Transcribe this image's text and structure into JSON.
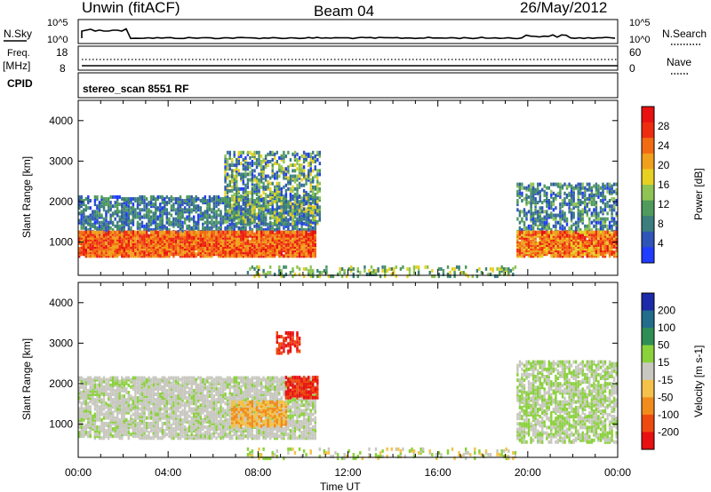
{
  "header": {
    "left_title": "Unwin (fitACF)",
    "center_title": "Beam 04",
    "right_title": "26/May/2012"
  },
  "strips": {
    "nsky_label": "N.Sky",
    "nsky_ticks": [
      "10^5",
      "10^0"
    ],
    "nsearch_label": "N.Search",
    "nsearch_ticks": [
      "10^5",
      "10^0"
    ],
    "freq_label": "Freq.",
    "freq_unit": "[MHz]",
    "freq_ticks": [
      "18",
      "8"
    ],
    "nave_label": "Nave",
    "nave_ticks": [
      "60",
      "0"
    ],
    "cpid_label": "CPID",
    "cpid_text": "stereo_scan 8551 RF"
  },
  "chart_data": [
    {
      "type": "heatmap",
      "panel": "power",
      "ylabel": "Slant Range [km]",
      "ylim": [
        180,
        4500
      ],
      "yticks": [
        1000,
        2000,
        3000,
        4000
      ],
      "xlim_hours": [
        0,
        24
      ],
      "colorbar": {
        "label": "Power [dB]",
        "ticks": [
          "4",
          "8",
          "12",
          "16",
          "20",
          "24",
          "28"
        ],
        "colors": [
          "#1f3cff",
          "#2f55b8",
          "#3c7d7d",
          "#4f9a5c",
          "#8fc455",
          "#e6d022",
          "#f0a01c",
          "#f26a12",
          "#ee2c10",
          "#e81010"
        ]
      },
      "echo_regions": [
        {
          "name": "dense F-region band",
          "hours": [
            0,
            10.5
          ],
          "range_km": [
            700,
            1300
          ],
          "power_db": [
            20,
            30
          ]
        },
        {
          "name": "sparse upper echoes",
          "hours": [
            0,
            10.5
          ],
          "range_km": [
            1300,
            2200
          ],
          "power_db": [
            4,
            14
          ]
        },
        {
          "name": "rising patch",
          "hours": [
            6.5,
            10.7
          ],
          "range_km": [
            1500,
            3300
          ],
          "power_db": [
            4,
            20
          ]
        },
        {
          "name": "near-range ground echoes",
          "hours": [
            7.5,
            19.5
          ],
          "range_km": [
            200,
            450
          ],
          "power_db": [
            8,
            20
          ]
        },
        {
          "name": "dusk band",
          "hours": [
            19.5,
            24
          ],
          "range_km": [
            700,
            2500
          ],
          "power_db": [
            4,
            30
          ]
        }
      ]
    },
    {
      "type": "heatmap",
      "panel": "velocity",
      "ylabel": "Slant Range [km]",
      "xlabel": "Time UT",
      "ylim": [
        180,
        4500
      ],
      "yticks": [
        1000,
        2000,
        3000,
        4000
      ],
      "xticks": [
        "00:00",
        "04:00",
        "08:00",
        "12:00",
        "16:00",
        "20:00",
        "00:00"
      ],
      "colorbar": {
        "label": "Velocity [m s-1]",
        "ticks": [
          "200",
          "100",
          "50",
          "15",
          "-15",
          "-50",
          "-100",
          "-200"
        ],
        "colors": [
          "#1a2aa8",
          "#226c8c",
          "#2f8e55",
          "#8ad13c",
          "#c8c8c0",
          "#f4c24a",
          "#f18c1c",
          "#ee4a10",
          "#e81010"
        ]
      },
      "echo_regions": [
        {
          "name": "ground scatter band",
          "hours": [
            0,
            10.5
          ],
          "range_km": [
            700,
            2200
          ],
          "velocity": "±15 (grey)"
        },
        {
          "name": "negative velocity patch",
          "hours": [
            6.8,
            9.2
          ],
          "range_km": [
            1000,
            1600
          ],
          "velocity": [
            -100,
            -50
          ]
        },
        {
          "name": "strong negative",
          "hours": [
            9.2,
            10.6
          ],
          "range_km": [
            1700,
            2200
          ],
          "velocity": [
            -200,
            -100
          ]
        },
        {
          "name": "strong negative upper",
          "hours": [
            8.8,
            9.8
          ],
          "range_km": [
            2800,
            3300
          ],
          "velocity": [
            -200,
            -100
          ]
        },
        {
          "name": "dusk ground scatter",
          "hours": [
            19.5,
            24
          ],
          "range_km": [
            600,
            2600
          ],
          "velocity": "±15 (grey) with green positive"
        }
      ]
    }
  ]
}
